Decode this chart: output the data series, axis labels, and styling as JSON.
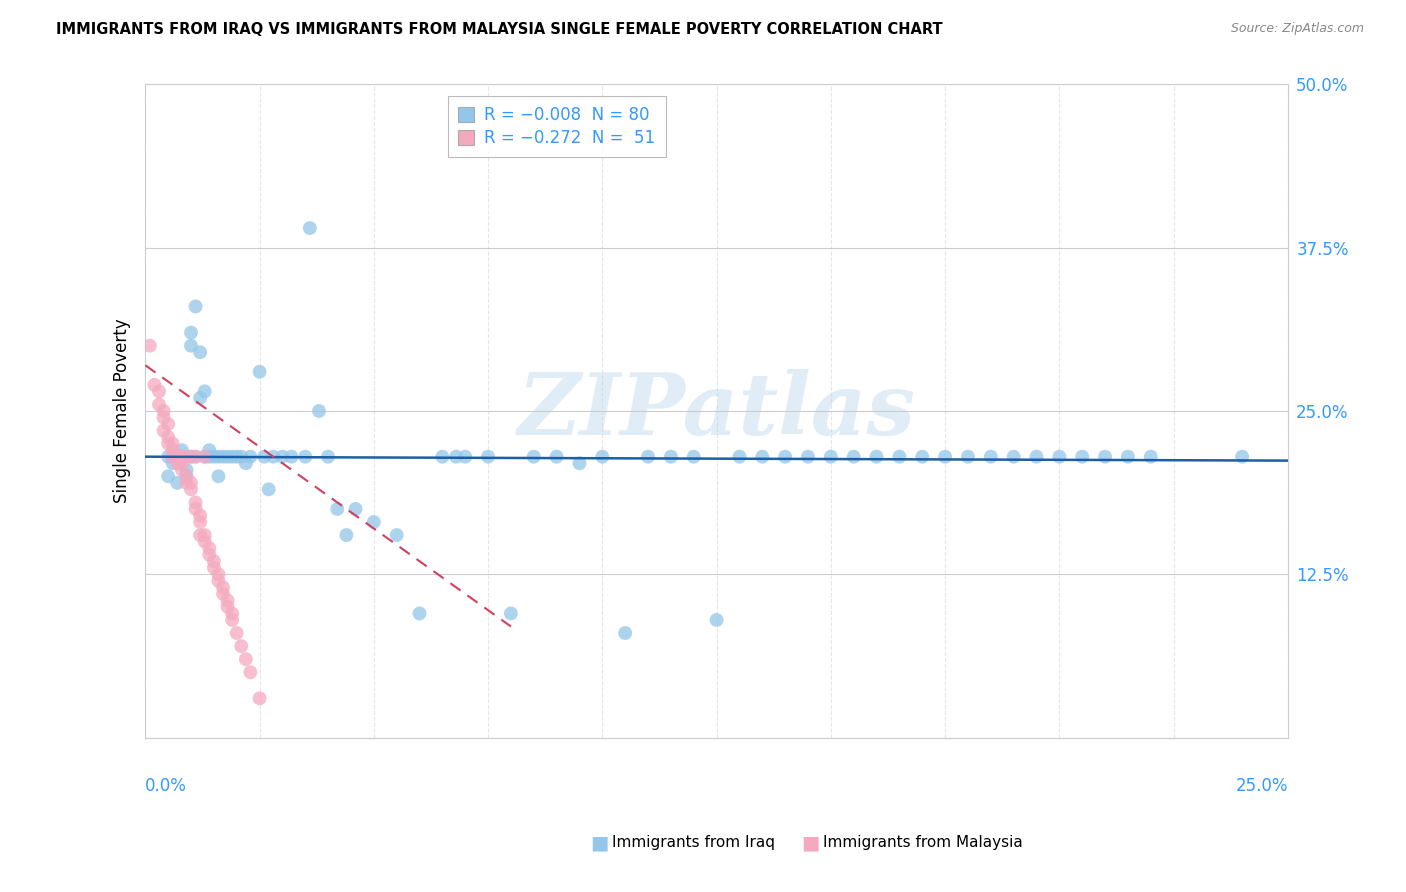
{
  "title": "IMMIGRANTS FROM IRAQ VS IMMIGRANTS FROM MALAYSIA SINGLE FEMALE POVERTY CORRELATION CHART",
  "source": "Source: ZipAtlas.com",
  "ylabel": "Single Female Poverty",
  "xlim": [
    0.0,
    0.25
  ],
  "ylim": [
    0.0,
    0.5
  ],
  "yticks": [
    0.0,
    0.125,
    0.25,
    0.375,
    0.5
  ],
  "ytick_labels": [
    "",
    "12.5%",
    "25.0%",
    "37.5%",
    "50.0%"
  ],
  "iraq_color": "#93c6e8",
  "malaysia_color": "#f4a9be",
  "iraq_line_color": "#1a5fa8",
  "malaysia_line_color": "#d04060",
  "malaysia_line_dash": [
    6,
    4
  ],
  "watermark_text": "ZIPatlas",
  "legend_iraq_label": "R = −0.008  N = 80",
  "legend_malaysia_label": "R = −0.272  N =  51",
  "bottom_legend_iraq": "Immigrants from Iraq",
  "bottom_legend_malaysia": "Immigrants from Malaysia",
  "iraq_x": [
    0.005,
    0.005,
    0.006,
    0.007,
    0.007,
    0.008,
    0.008,
    0.009,
    0.009,
    0.01,
    0.01,
    0.01,
    0.011,
    0.011,
    0.012,
    0.012,
    0.013,
    0.013,
    0.014,
    0.014,
    0.015,
    0.016,
    0.016,
    0.017,
    0.018,
    0.019,
    0.02,
    0.021,
    0.022,
    0.023,
    0.025,
    0.026,
    0.027,
    0.028,
    0.03,
    0.032,
    0.035,
    0.036,
    0.038,
    0.04,
    0.042,
    0.044,
    0.046,
    0.05,
    0.055,
    0.06,
    0.065,
    0.068,
    0.07,
    0.075,
    0.08,
    0.085,
    0.09,
    0.095,
    0.1,
    0.105,
    0.11,
    0.115,
    0.12,
    0.125,
    0.13,
    0.135,
    0.14,
    0.145,
    0.15,
    0.155,
    0.16,
    0.165,
    0.17,
    0.175,
    0.18,
    0.185,
    0.19,
    0.195,
    0.2,
    0.205,
    0.21,
    0.215,
    0.22,
    0.24
  ],
  "iraq_y": [
    0.215,
    0.2,
    0.21,
    0.195,
    0.215,
    0.22,
    0.215,
    0.2,
    0.205,
    0.215,
    0.3,
    0.31,
    0.33,
    0.215,
    0.26,
    0.295,
    0.215,
    0.265,
    0.22,
    0.215,
    0.215,
    0.2,
    0.215,
    0.215,
    0.215,
    0.215,
    0.215,
    0.215,
    0.21,
    0.215,
    0.28,
    0.215,
    0.19,
    0.215,
    0.215,
    0.215,
    0.215,
    0.39,
    0.25,
    0.215,
    0.175,
    0.155,
    0.175,
    0.165,
    0.155,
    0.095,
    0.215,
    0.215,
    0.215,
    0.215,
    0.095,
    0.215,
    0.215,
    0.21,
    0.215,
    0.08,
    0.215,
    0.215,
    0.215,
    0.09,
    0.215,
    0.215,
    0.215,
    0.215,
    0.215,
    0.215,
    0.215,
    0.215,
    0.215,
    0.215,
    0.215,
    0.215,
    0.215,
    0.215,
    0.215,
    0.215,
    0.215,
    0.215,
    0.215,
    0.215
  ],
  "malaysia_x": [
    0.001,
    0.002,
    0.003,
    0.003,
    0.004,
    0.004,
    0.004,
    0.005,
    0.005,
    0.005,
    0.006,
    0.006,
    0.006,
    0.007,
    0.007,
    0.007,
    0.008,
    0.008,
    0.008,
    0.009,
    0.009,
    0.009,
    0.01,
    0.01,
    0.01,
    0.011,
    0.011,
    0.011,
    0.012,
    0.012,
    0.012,
    0.013,
    0.013,
    0.013,
    0.014,
    0.014,
    0.015,
    0.015,
    0.016,
    0.016,
    0.017,
    0.017,
    0.018,
    0.018,
    0.019,
    0.019,
    0.02,
    0.021,
    0.022,
    0.023,
    0.025
  ],
  "malaysia_y": [
    0.3,
    0.27,
    0.265,
    0.255,
    0.25,
    0.245,
    0.235,
    0.23,
    0.225,
    0.24,
    0.22,
    0.215,
    0.225,
    0.21,
    0.215,
    0.215,
    0.205,
    0.21,
    0.215,
    0.195,
    0.2,
    0.215,
    0.19,
    0.195,
    0.215,
    0.175,
    0.18,
    0.215,
    0.165,
    0.17,
    0.155,
    0.15,
    0.155,
    0.215,
    0.14,
    0.145,
    0.13,
    0.135,
    0.12,
    0.125,
    0.11,
    0.115,
    0.1,
    0.105,
    0.09,
    0.095,
    0.08,
    0.07,
    0.06,
    0.05,
    0.03
  ],
  "iraq_line_x": [
    0.0,
    0.25
  ],
  "iraq_line_y": [
    0.215,
    0.212
  ],
  "malaysia_line_x": [
    0.0,
    0.08
  ],
  "malaysia_line_y": [
    0.285,
    0.085
  ]
}
